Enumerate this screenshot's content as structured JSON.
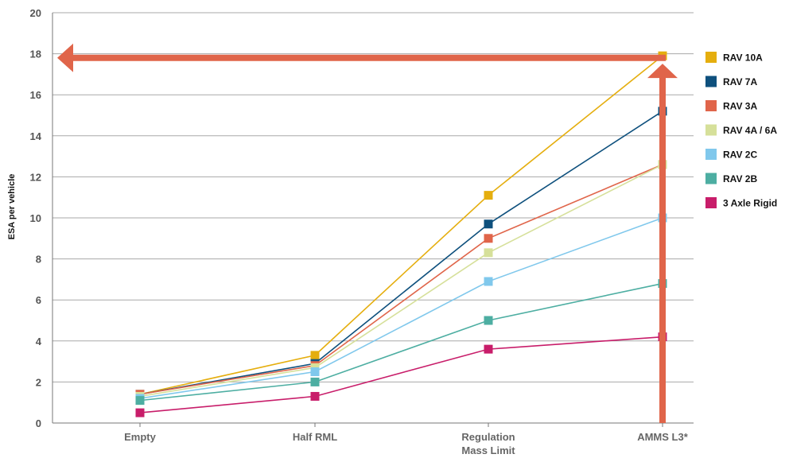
{
  "chart_data": {
    "type": "line",
    "categories": [
      [
        "Empty"
      ],
      [
        "Half RML"
      ],
      [
        "Regulation",
        "Mass Limit"
      ],
      [
        "AMMS L3*"
      ]
    ],
    "ylabel": "ESA per vehicle",
    "ylim": [
      0,
      20
    ],
    "yticks": [
      "0",
      "2",
      "4",
      "6",
      "8",
      "10",
      "12",
      "14",
      "16",
      "18",
      "20"
    ],
    "grid": true,
    "legend_position": "right",
    "series": [
      {
        "name": "RAV 10A",
        "color": "#E5AE0E",
        "values": [
          1.4,
          3.3,
          11.1,
          17.9
        ]
      },
      {
        "name": "RAV 7A",
        "color": "#0E507D",
        "values": [
          1.4,
          2.9,
          9.7,
          15.2
        ]
      },
      {
        "name": "RAV 3A",
        "color": "#E0654A",
        "values": [
          1.4,
          2.8,
          9.0,
          12.6
        ]
      },
      {
        "name": "RAV 4A / 6A",
        "color": "#D6E09A",
        "values": [
          1.3,
          2.7,
          8.3,
          12.6
        ]
      },
      {
        "name": "RAV 2C",
        "color": "#80C8EC",
        "values": [
          1.2,
          2.5,
          6.9,
          10.0
        ]
      },
      {
        "name": "RAV 2B",
        "color": "#4DAEA2",
        "values": [
          1.1,
          2.0,
          5.0,
          6.8
        ]
      },
      {
        "name": "3 Axle Rigid",
        "color": "#C81D6A",
        "values": [
          0.5,
          1.3,
          3.6,
          4.2
        ]
      }
    ],
    "annotations": {
      "arrow_color": "#E0654A",
      "vertical_arrow": {
        "category": 3,
        "from": 0,
        "to": 17.9
      },
      "horizontal_arrow": {
        "y": 17.8,
        "from_category": 3
      }
    }
  }
}
